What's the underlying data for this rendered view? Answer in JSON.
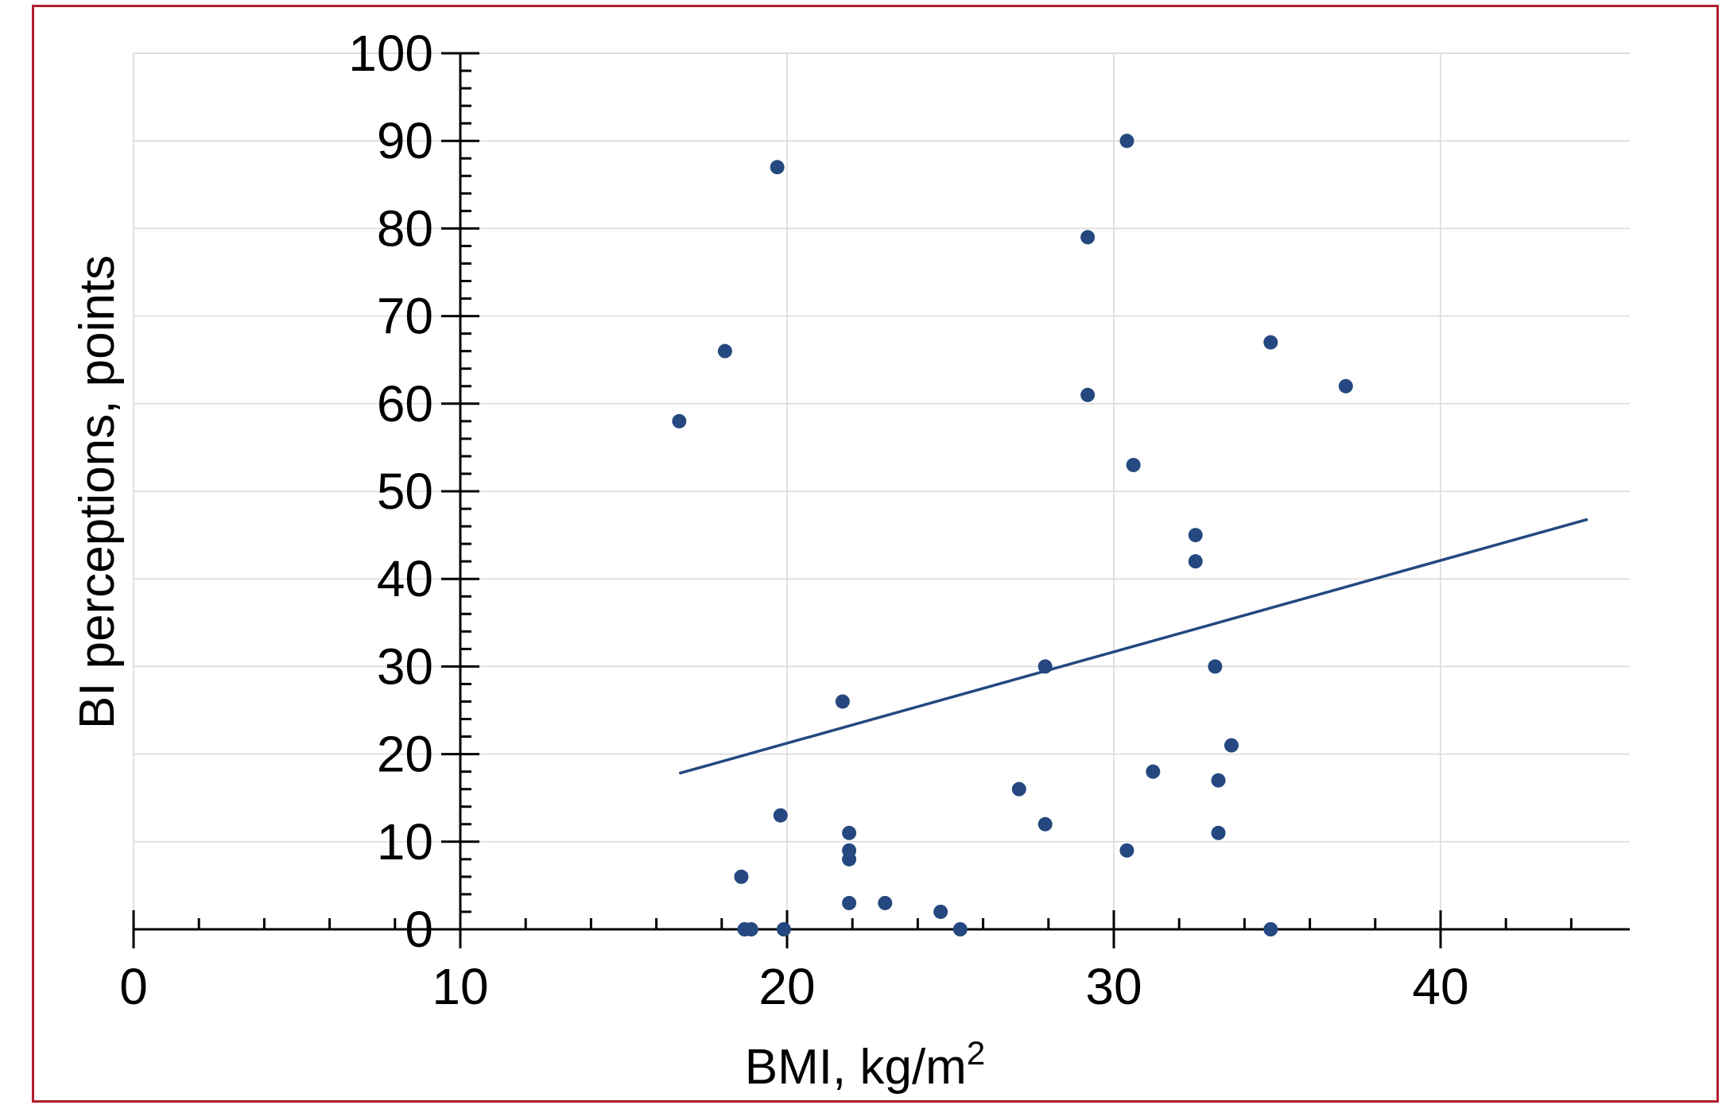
{
  "chart_data": {
    "type": "scatter",
    "title": "",
    "xlabel": "BMI, kg/m",
    "xlabel_superscript": "2",
    "ylabel": "BI perceptions, points",
    "xlim": [
      0,
      45
    ],
    "ylim": [
      0,
      100
    ],
    "x_ticks": [
      "0",
      "10",
      "20",
      "30",
      "40"
    ],
    "y_ticks": [
      "0",
      "10",
      "20",
      "30",
      "40",
      "50",
      "60",
      "70",
      "80",
      "90",
      "100"
    ],
    "grid": true,
    "marker_color": "#24487f",
    "trendline_color": "#24487f",
    "series": [
      {
        "points": [
          [
            16.7,
            58
          ],
          [
            18.1,
            66
          ],
          [
            19.7,
            87
          ],
          [
            30.4,
            90
          ],
          [
            29.2,
            79
          ],
          [
            29.2,
            61
          ],
          [
            34.8,
            67
          ],
          [
            37.1,
            62
          ],
          [
            30.6,
            53
          ],
          [
            32.5,
            45
          ],
          [
            32.5,
            42
          ],
          [
            27.9,
            30
          ],
          [
            33.1,
            30
          ],
          [
            21.7,
            26
          ],
          [
            33.6,
            21
          ],
          [
            31.2,
            18
          ],
          [
            33.2,
            17
          ],
          [
            27.1,
            16
          ],
          [
            19.8,
            13
          ],
          [
            27.9,
            12
          ],
          [
            33.2,
            11
          ],
          [
            21.9,
            11
          ],
          [
            21.9,
            9
          ],
          [
            30.4,
            9
          ],
          [
            21.9,
            8
          ],
          [
            18.6,
            6
          ],
          [
            21.9,
            3
          ],
          [
            23.0,
            3
          ],
          [
            24.7,
            2
          ],
          [
            18.7,
            0
          ],
          [
            18.9,
            0
          ],
          [
            19.9,
            0
          ],
          [
            25.3,
            0
          ],
          [
            34.8,
            0
          ]
        ]
      }
    ],
    "trendline": {
      "x": [
        16.7,
        44.5
      ],
      "y": [
        17.8,
        46.8
      ]
    }
  }
}
